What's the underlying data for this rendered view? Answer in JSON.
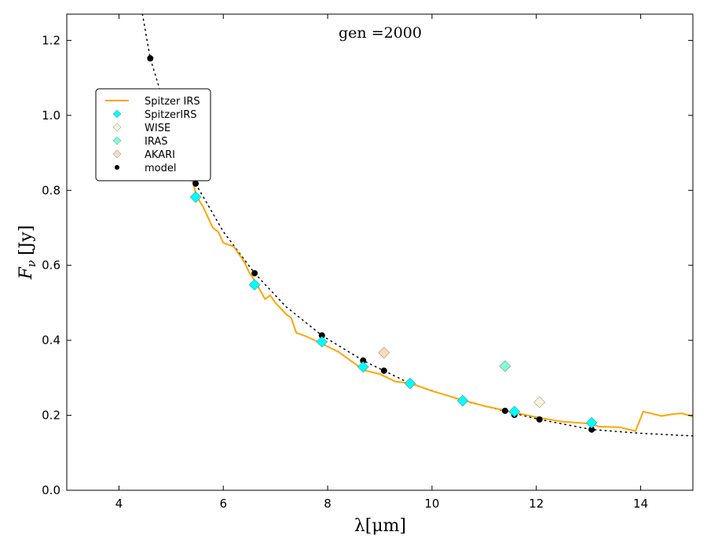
{
  "chart_data": {
    "type": "line",
    "title": "gen =2000",
    "xlabel": "λ[μm]",
    "ylabel_main": "F",
    "ylabel_sub": "ν",
    "ylabel_unit": "[Jy]",
    "xlim": [
      3,
      15
    ],
    "ylim": [
      0,
      1.27
    ],
    "xticks": [
      4,
      6,
      8,
      10,
      12,
      14
    ],
    "yticks": [
      0.0,
      0.2,
      0.4,
      0.6,
      0.8,
      1.0,
      1.2
    ],
    "xtick_labels": [
      "4",
      "6",
      "8",
      "10",
      "12",
      "14"
    ],
    "ytick_labels": [
      "0.0",
      "0.2",
      "0.4",
      "0.6",
      "0.8",
      "1.0",
      "1.2"
    ],
    "grid": false,
    "legend_placement": "upper-left",
    "series": [
      {
        "name": "Spitzer IRS",
        "kind": "line",
        "color": "#FFA500",
        "x": [
          5.4,
          5.5,
          5.6,
          5.7,
          5.8,
          5.9,
          6.0,
          6.2,
          6.4,
          6.5,
          6.6,
          6.8,
          6.9,
          7.0,
          7.2,
          7.3,
          7.4,
          7.6,
          7.9,
          8.2,
          8.5,
          8.7,
          9.0,
          9.3,
          9.6,
          10.0,
          10.6,
          11.0,
          11.5,
          12.0,
          12.5,
          13.0,
          13.2,
          13.6,
          13.9,
          14.05,
          14.2,
          14.4,
          14.6,
          14.8,
          15.0
        ],
        "y": [
          0.83,
          0.78,
          0.76,
          0.73,
          0.7,
          0.69,
          0.66,
          0.65,
          0.61,
          0.58,
          0.56,
          0.51,
          0.52,
          0.5,
          0.47,
          0.46,
          0.42,
          0.41,
          0.39,
          0.37,
          0.34,
          0.32,
          0.31,
          0.29,
          0.285,
          0.265,
          0.24,
          0.225,
          0.21,
          0.195,
          0.183,
          0.178,
          0.17,
          0.168,
          0.158,
          0.21,
          0.205,
          0.198,
          0.203,
          0.205,
          0.196
        ]
      },
      {
        "name": "SpitzerIRS",
        "kind": "diamond",
        "color": "#00FFFF",
        "x": [
          5.47,
          6.6,
          7.89,
          8.68,
          9.58,
          10.59,
          11.58,
          13.06
        ],
        "y": [
          0.782,
          0.548,
          0.396,
          0.329,
          0.285,
          0.239,
          0.21,
          0.18
        ]
      },
      {
        "name": "WISE",
        "kind": "diamond",
        "color": "#F5F5DC",
        "x": [
          12.06
        ],
        "y": [
          0.235
        ]
      },
      {
        "name": "IRAS",
        "kind": "diamond",
        "color": "#7FFFD4",
        "x": [
          11.4
        ],
        "y": [
          0.331
        ]
      },
      {
        "name": "AKARI",
        "kind": "diamond",
        "color": "#FFDAB9",
        "x": [
          9.08
        ],
        "y": [
          0.367
        ]
      },
      {
        "name": "model",
        "kind": "dot",
        "color": "#000000",
        "x": [
          4.6,
          5.47,
          6.6,
          7.89,
          8.68,
          9.08,
          9.58,
          10.59,
          11.4,
          11.58,
          12.06,
          13.06
        ],
        "y": [
          1.152,
          0.818,
          0.579,
          0.413,
          0.346,
          0.319,
          0.285,
          0.239,
          0.212,
          0.201,
          0.189,
          0.162
        ]
      },
      {
        "name": "model curve",
        "kind": "dotted",
        "color": "#000000",
        "x": [
          4.45,
          4.6,
          5.0,
          5.47,
          6.0,
          6.6,
          7.2,
          7.89,
          8.68,
          9.58,
          10.59,
          11.58,
          12.06,
          13.06,
          14.0,
          15.0
        ],
        "y": [
          1.27,
          1.152,
          0.97,
          0.818,
          0.69,
          0.579,
          0.49,
          0.413,
          0.346,
          0.285,
          0.239,
          0.205,
          0.189,
          0.162,
          0.152,
          0.145
        ]
      }
    ],
    "legend": [
      "Spitzer IRS",
      "SpitzerIRS",
      "WISE",
      "IRAS",
      "AKARI",
      "model"
    ]
  }
}
